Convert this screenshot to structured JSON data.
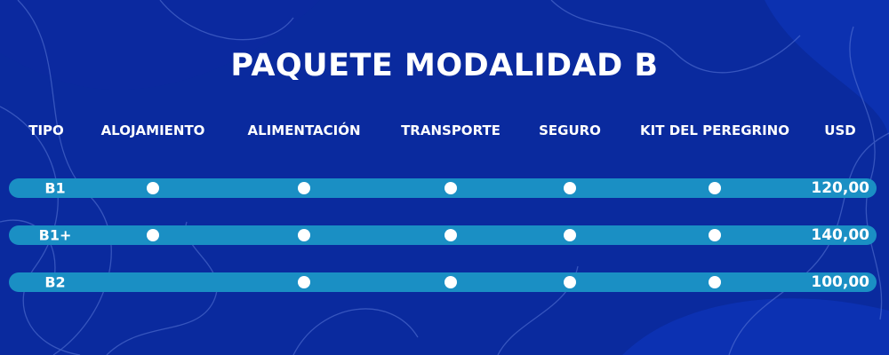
{
  "title": "PAQUETE MODALIDAD B",
  "colors": {
    "background": "#0a2a9e",
    "row_bar": "#1a8fc4",
    "text": "#ffffff"
  },
  "columns": [
    "TIPO",
    "ALOJAMIENTO",
    "ALIMENTACIÓN",
    "TRANSPORTE",
    "SEGURO",
    "KIT DEL PEREGRINO",
    "USD"
  ],
  "rows": [
    {
      "tipo": "B1",
      "alojamiento": true,
      "alimentacion": true,
      "transporte": true,
      "seguro": true,
      "kit": true,
      "usd": "120,00"
    },
    {
      "tipo": "B1+",
      "alojamiento": true,
      "alimentacion": true,
      "transporte": true,
      "seguro": true,
      "kit": true,
      "usd": "140,00"
    },
    {
      "tipo": "B2",
      "alojamiento": false,
      "alimentacion": true,
      "transporte": true,
      "seguro": true,
      "kit": true,
      "usd": "100,00"
    }
  ]
}
